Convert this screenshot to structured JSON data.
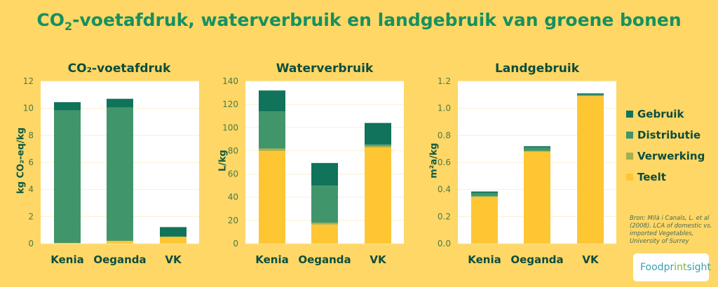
{
  "title": {
    "main": "CO",
    "sub": "2",
    "rest": "-voetafdruk, waterverbruik en landgebruik van groene bonen"
  },
  "colors": {
    "Gebruik": "#10735A",
    "Distributie": "#41956A",
    "Verwerking": "#9FB04E",
    "Teelt": "#FFC633",
    "text": "#0E4D3C",
    "grid": "#FBEFC8"
  },
  "legend": [
    {
      "label": "Gebruik",
      "color": "#10735A"
    },
    {
      "label": "Distributie",
      "color": "#41956A"
    },
    {
      "label": "Verwerking",
      "color": "#9FB04E"
    },
    {
      "label": "Teelt",
      "color": "#FFC633"
    }
  ],
  "source": "Bron: Milà i Canals, L. et al (2008). LCA of domestic vs. imported Vegetables, University of Surrey",
  "logo": {
    "text_a": "Foodpr",
    "text_b": "int",
    "text_c": "sight"
  },
  "chart_data": [
    {
      "type": "bar",
      "stacked": true,
      "title": "CO₂-voetafdruk",
      "ylabel": "kg CO₂-eq/kg",
      "ylim": [
        0,
        12
      ],
      "yticks": [
        "0",
        "2",
        "4",
        "6",
        "8",
        "10",
        "12"
      ],
      "categories": [
        "Kenia",
        "Oeganda",
        "VK"
      ],
      "series": [
        {
          "name": "Teelt",
          "values": [
            0.05,
            0.2,
            0.5
          ]
        },
        {
          "name": "Verwerking",
          "values": [
            0.0,
            0.0,
            0.02
          ]
        },
        {
          "name": "Distributie",
          "values": [
            9.8,
            9.85,
            0.0
          ]
        },
        {
          "name": "Gebruik",
          "values": [
            0.6,
            0.65,
            0.7
          ]
        }
      ]
    },
    {
      "type": "bar",
      "stacked": true,
      "title": "Waterverbruik",
      "ylabel": "L/kg",
      "ylim": [
        0,
        140
      ],
      "yticks": [
        "0",
        "20",
        "40",
        "60",
        "80",
        "100",
        "120",
        "140"
      ],
      "categories": [
        "Kenia",
        "Oeganda",
        "VK"
      ],
      "series": [
        {
          "name": "Teelt",
          "values": [
            80,
            16.5,
            83
          ]
        },
        {
          "name": "Verwerking",
          "values": [
            2,
            1.5,
            1.5
          ]
        },
        {
          "name": "Distributie",
          "values": [
            32,
            32,
            1
          ]
        },
        {
          "name": "Gebruik",
          "values": [
            18,
            19.5,
            18.5
          ]
        }
      ]
    },
    {
      "type": "bar",
      "stacked": true,
      "title": "Landgebruik",
      "ylabel": "m²a/kg",
      "ylim": [
        0,
        1.2
      ],
      "yticks": [
        "0.0",
        "0.2",
        "0.4",
        "0.6",
        "0.8",
        "1.0",
        "1.2"
      ],
      "categories": [
        "Kenia",
        "Oeganda",
        "VK"
      ],
      "series": [
        {
          "name": "Teelt",
          "values": [
            0.345,
            0.68,
            1.09
          ]
        },
        {
          "name": "Verwerking",
          "values": [
            0.005,
            0.005,
            0.003
          ]
        },
        {
          "name": "Distributie",
          "values": [
            0.025,
            0.025,
            0.007
          ]
        },
        {
          "name": "Gebruik",
          "values": [
            0.01,
            0.01,
            0.01
          ]
        }
      ]
    }
  ]
}
